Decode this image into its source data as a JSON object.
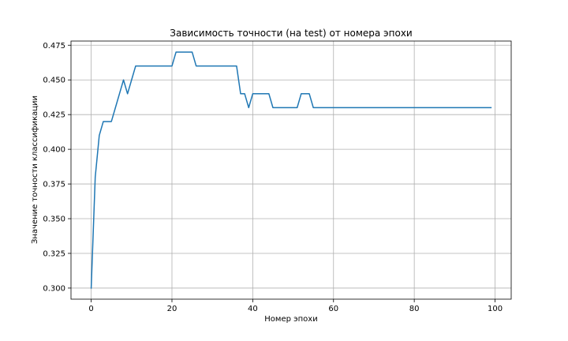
{
  "chart_data": {
    "type": "line",
    "title": "Зависимость точности (на test) от номера эпохи",
    "xlabel": "Номер эпохи",
    "ylabel": "Значение точности классификации",
    "xlim": [
      -5,
      104
    ],
    "ylim": [
      0.292,
      0.478
    ],
    "xticks": [
      0,
      20,
      40,
      60,
      80,
      100
    ],
    "xtick_labels": [
      "0",
      "20",
      "40",
      "60",
      "80",
      "100"
    ],
    "yticks": [
      0.3,
      0.325,
      0.35,
      0.375,
      0.4,
      0.425,
      0.45,
      0.475
    ],
    "ytick_labels": [
      "0.300",
      "0.325",
      "0.350",
      "0.375",
      "0.400",
      "0.425",
      "0.450",
      "0.475"
    ],
    "grid": true,
    "series": [
      {
        "color": "#1f77b4",
        "x": [
          0,
          1,
          2,
          3,
          4,
          5,
          6,
          7,
          8,
          9,
          10,
          11,
          12,
          13,
          14,
          15,
          16,
          17,
          18,
          19,
          20,
          21,
          22,
          23,
          24,
          25,
          26,
          27,
          28,
          29,
          30,
          31,
          32,
          33,
          34,
          35,
          36,
          37,
          38,
          39,
          40,
          41,
          42,
          43,
          44,
          45,
          46,
          47,
          48,
          49,
          50,
          51,
          52,
          53,
          54,
          55,
          56,
          57,
          58,
          59,
          60,
          61,
          62,
          63,
          64,
          65,
          66,
          67,
          68,
          69,
          70,
          71,
          72,
          73,
          74,
          75,
          76,
          77,
          78,
          79,
          80,
          81,
          82,
          83,
          84,
          85,
          86,
          87,
          88,
          89,
          90,
          91,
          92,
          93,
          94,
          95,
          96,
          97,
          98,
          99
        ],
        "values": [
          0.3,
          0.38,
          0.41,
          0.42,
          0.42,
          0.42,
          0.43,
          0.44,
          0.45,
          0.44,
          0.45,
          0.46,
          0.46,
          0.46,
          0.46,
          0.46,
          0.46,
          0.46,
          0.46,
          0.46,
          0.46,
          0.47,
          0.47,
          0.47,
          0.47,
          0.47,
          0.46,
          0.46,
          0.46,
          0.46,
          0.46,
          0.46,
          0.46,
          0.46,
          0.46,
          0.46,
          0.46,
          0.44,
          0.44,
          0.43,
          0.44,
          0.44,
          0.44,
          0.44,
          0.44,
          0.43,
          0.43,
          0.43,
          0.43,
          0.43,
          0.43,
          0.43,
          0.44,
          0.44,
          0.44,
          0.43,
          0.43,
          0.43,
          0.43,
          0.43,
          0.43,
          0.43,
          0.43,
          0.43,
          0.43,
          0.43,
          0.43,
          0.43,
          0.43,
          0.43,
          0.43,
          0.43,
          0.43,
          0.43,
          0.43,
          0.43,
          0.43,
          0.43,
          0.43,
          0.43,
          0.43,
          0.43,
          0.43,
          0.43,
          0.43,
          0.43,
          0.43,
          0.43,
          0.43,
          0.43,
          0.43,
          0.43,
          0.43,
          0.43,
          0.43,
          0.43,
          0.43,
          0.43,
          0.43,
          0.43
        ]
      }
    ]
  }
}
